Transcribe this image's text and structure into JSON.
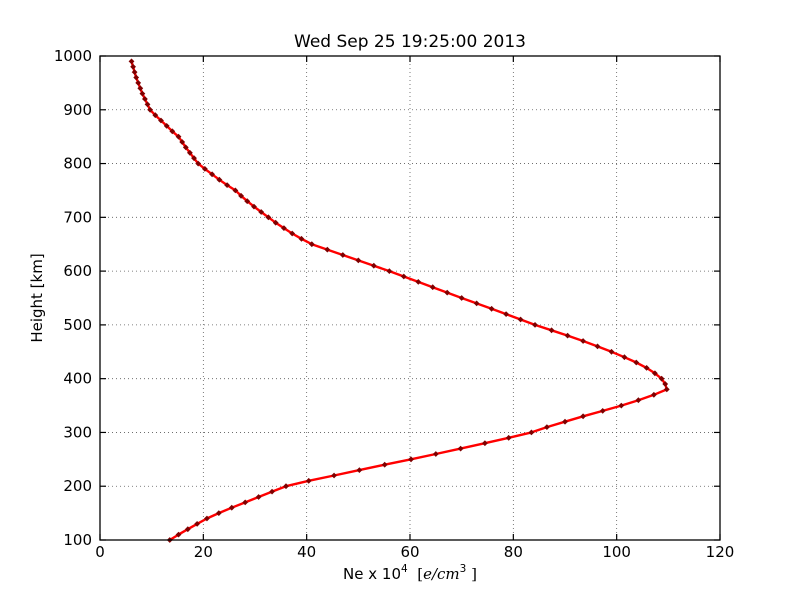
{
  "chart_data": {
    "type": "line",
    "title": "Wed Sep 25 19:25:00 2013",
    "ylabel": "Height [km]",
    "xlabel_parts": {
      "prefix": "Ne x 10",
      "sup1": "4",
      "mid": "  [",
      "math_italic": "e/cm",
      "sup2": "3",
      "close": " ]"
    },
    "xlim": [
      0,
      120
    ],
    "ylim": [
      100,
      1000
    ],
    "xticks": [
      0,
      20,
      40,
      60,
      80,
      100,
      120
    ],
    "yticks": [
      100,
      200,
      300,
      400,
      500,
      600,
      700,
      800,
      900,
      1000
    ],
    "grid": true,
    "grid_style": "dotted",
    "line_color": "#ff0000",
    "marker_color": "#7f0000",
    "marker": "diamond",
    "series": [
      {
        "name": "electron-density-profile",
        "x_ne": [
          13.5,
          15.2,
          17.0,
          18.8,
          20.7,
          23.0,
          25.5,
          28.1,
          30.7,
          33.3,
          36.0,
          40.4,
          45.3,
          50.2,
          55.1,
          60.2,
          65.0,
          69.8,
          74.5,
          79.1,
          83.5,
          86.5,
          90.0,
          93.5,
          97.3,
          100.9,
          104.2,
          107.2,
          109.7,
          109.4,
          108.7,
          107.4,
          105.8,
          103.8,
          101.5,
          99.0,
          96.3,
          93.5,
          90.5,
          87.4,
          84.2,
          81.4,
          78.6,
          75.8,
          72.9,
          70.0,
          67.2,
          64.4,
          61.6,
          58.8,
          56.0,
          53.0,
          50.0,
          47.0,
          44.0,
          41.0,
          39.0,
          37.2,
          35.6,
          34.0,
          32.6,
          31.2,
          29.8,
          28.5,
          27.3,
          26.2,
          24.6,
          23.1,
          21.7,
          20.3,
          19.0,
          18.2,
          17.4,
          16.6,
          15.9,
          15.2,
          14.0,
          12.9,
          11.8,
          10.7,
          9.7,
          9.2,
          8.7,
          8.2,
          7.8,
          7.4,
          7.0,
          6.7,
          6.4,
          6.1
        ],
        "y_height_km": [
          100,
          110,
          120,
          130,
          140,
          150,
          160,
          170,
          180,
          190,
          200,
          210,
          220,
          230,
          240,
          250,
          260,
          270,
          280,
          290,
          300,
          310,
          320,
          330,
          340,
          350,
          360,
          370,
          380,
          390,
          400,
          410,
          420,
          430,
          440,
          450,
          460,
          470,
          480,
          490,
          500,
          510,
          520,
          530,
          540,
          550,
          560,
          570,
          580,
          590,
          600,
          610,
          620,
          630,
          640,
          650,
          660,
          670,
          680,
          690,
          700,
          710,
          720,
          730,
          740,
          750,
          760,
          770,
          780,
          790,
          800,
          810,
          820,
          830,
          840,
          850,
          860,
          870,
          880,
          890,
          900,
          910,
          920,
          930,
          940,
          950,
          960,
          970,
          980,
          990
        ]
      }
    ]
  }
}
